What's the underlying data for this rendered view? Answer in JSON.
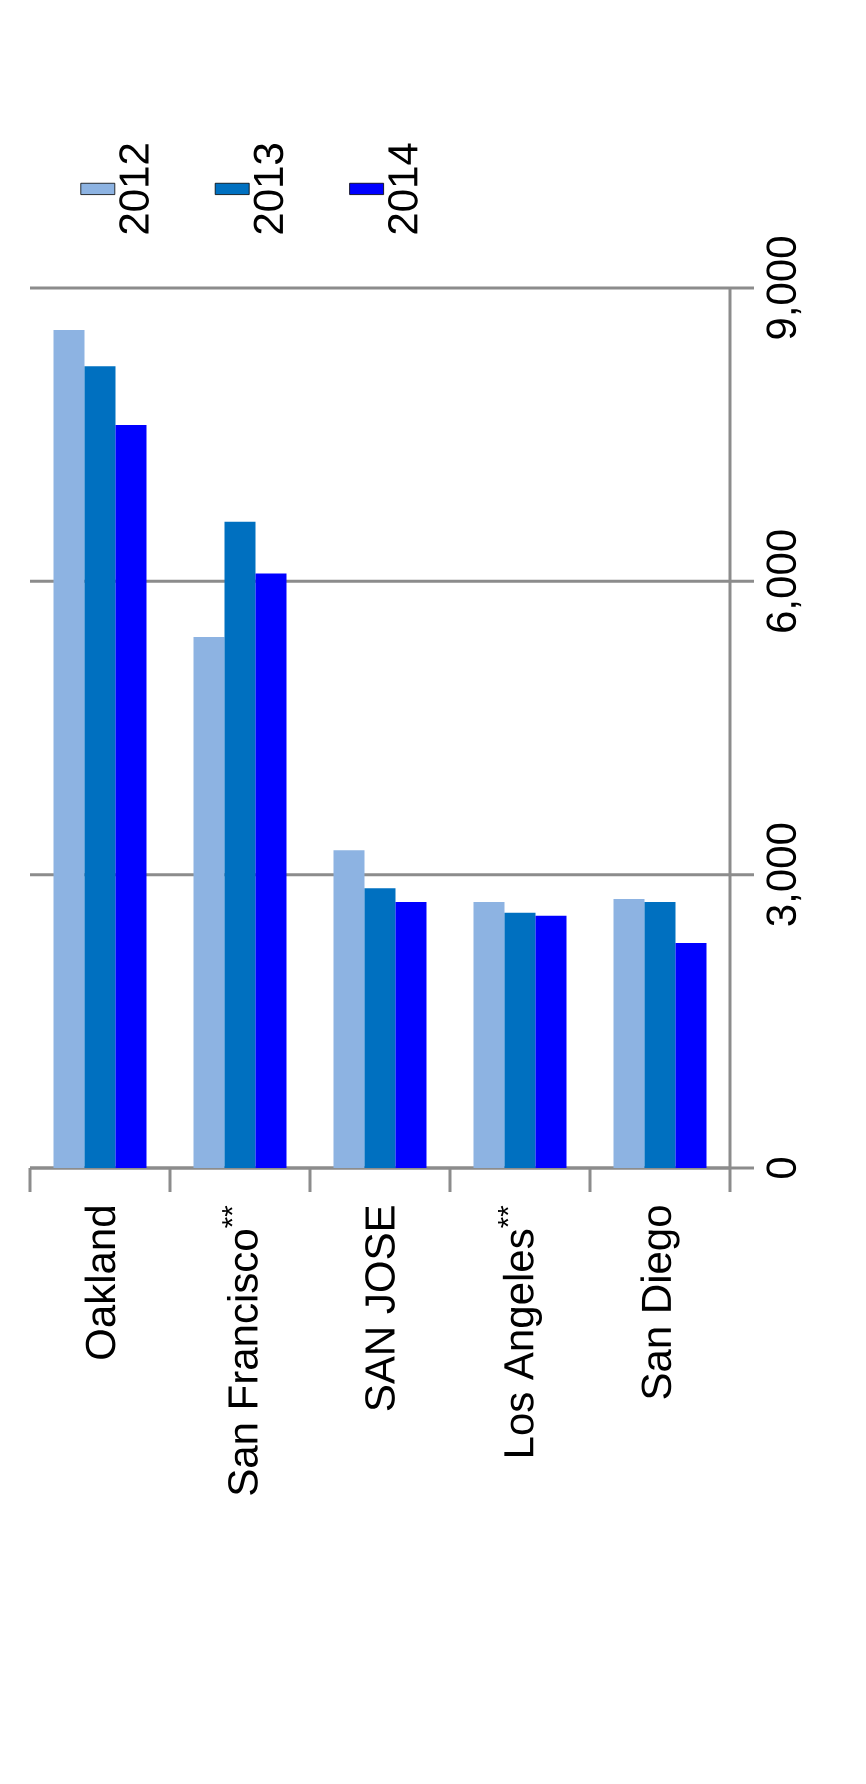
{
  "chart_data": {
    "type": "bar",
    "categories": [
      "Oakland",
      "San Francisco$^{**}$",
      "SAN JOSE",
      "Los Angeles$^{**}$",
      "San Diego"
    ],
    "series": [
      {
        "name": "2012",
        "color": "#8db3e2",
        "values": [
          8570,
          5430,
          3250,
          2720,
          2750
        ]
      },
      {
        "name": "2013",
        "color": "#0070c0",
        "values": [
          8200,
          6610,
          2860,
          2610,
          2720
        ]
      },
      {
        "name": "2014",
        "color": "#0000ff",
        "values": [
          7600,
          6080,
          2720,
          2580,
          2300
        ]
      }
    ],
    "ylim": [
      0,
      9000
    ],
    "yticks": [
      0,
      {
        "value": 3000,
        "label": "3,000"
      },
      {
        "value": 6000,
        "label": "6,000"
      },
      {
        "value": 9000,
        "label": "9,000"
      }
    ],
    "grid": "y",
    "legend": "top left"
  }
}
